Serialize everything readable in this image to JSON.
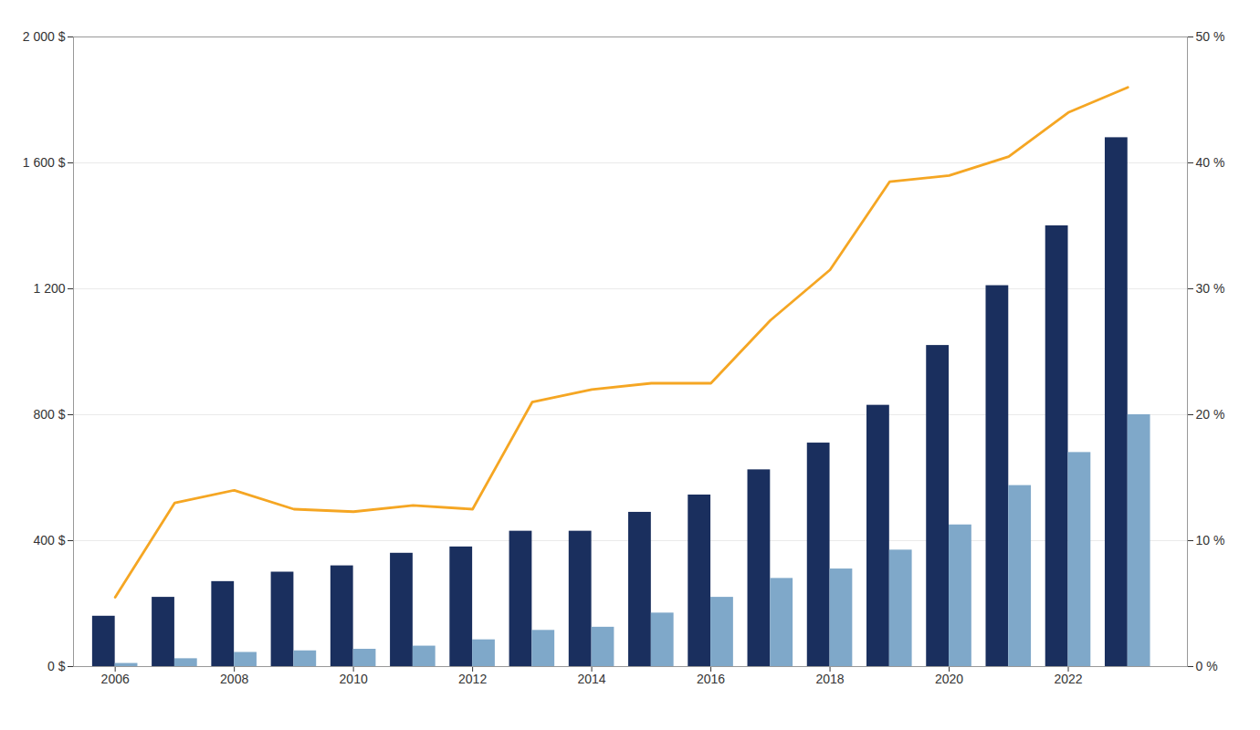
{
  "chart_data": {
    "type": "bar",
    "x": [
      2006,
      2007,
      2008,
      2009,
      2010,
      2011,
      2012,
      2013,
      2014,
      2015,
      2016,
      2017,
      2018,
      2019,
      2020,
      2021,
      2022,
      2023
    ],
    "series": [
      {
        "type": "bar",
        "color": "#1a2f5e",
        "values": [
          160,
          220,
          270,
          300,
          320,
          360,
          380,
          430,
          430,
          490,
          545,
          625,
          710,
          830,
          1020,
          1210,
          1400,
          1680
        ]
      },
      {
        "type": "bar",
        "color": "#7fa8c9",
        "values": [
          10,
          25,
          45,
          50,
          55,
          65,
          85,
          115,
          125,
          170,
          220,
          280,
          310,
          370,
          450,
          575,
          680,
          800
        ]
      },
      {
        "type": "line",
        "axis": "y2",
        "color": "#f5a623",
        "values": [
          5.5,
          13.0,
          14.0,
          12.5,
          12.3,
          12.8,
          12.5,
          21.0,
          22.0,
          22.5,
          22.5,
          27.5,
          31.5,
          38.5,
          39.0,
          40.5,
          44.0,
          46.0
        ]
      }
    ],
    "xlim": [
      2005.3,
      2024.0
    ],
    "xticks": [
      2006,
      2008,
      2010,
      2012,
      2014,
      2016,
      2018,
      2020,
      2022
    ],
    "ylim": [
      0,
      2000
    ],
    "yticks": [
      {
        "value": 0,
        "label": "0 $"
      },
      {
        "value": 400,
        "label": "400 $"
      },
      {
        "value": 800,
        "label": "800 $"
      },
      {
        "value": 1200,
        "label": "1 200"
      },
      {
        "value": 1600,
        "label": "1 600 $"
      },
      {
        "value": 2000,
        "label": "2 000 $"
      }
    ],
    "y2lim": [
      0,
      50
    ],
    "y2ticks": [
      {
        "value": 0,
        "label": "0 %"
      },
      {
        "value": 10,
        "label": "10 %"
      },
      {
        "value": 20,
        "label": "20 %"
      },
      {
        "value": 30,
        "label": "30 %"
      },
      {
        "value": 40,
        "label": "40 %"
      },
      {
        "value": 50,
        "label": "50 %"
      }
    ],
    "grid": true
  }
}
